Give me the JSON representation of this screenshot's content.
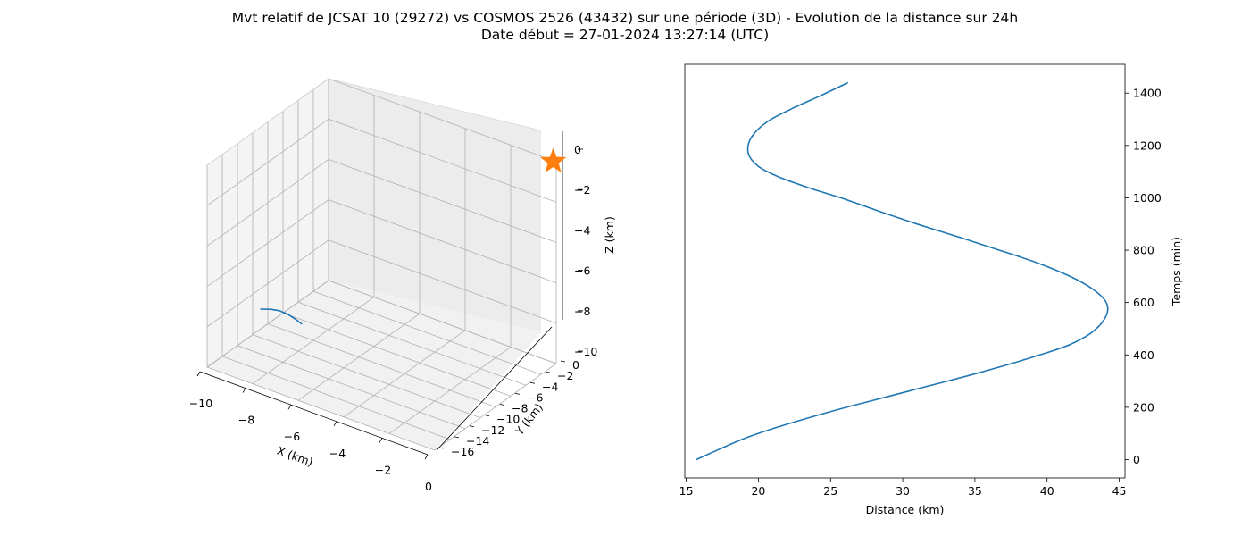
{
  "figure": {
    "title_line1": "Mvt relatif de JCSAT 10 (29272) vs COSMOS 2526 (43432) sur une période (3D) - Evolution de la distance sur 24h",
    "title_line2": "Date début = 27-01-2024 13:27:14 (UTC)"
  },
  "colors": {
    "trajectory": "#1f77b4",
    "star": "#ff7f0e",
    "distance_curve": "#1f77b4",
    "pane_left": "#f4f4f4",
    "pane_right": "#ececec",
    "pane_floor": "#f1f1f1",
    "grid": "#b0b0b0"
  },
  "chart_data": [
    {
      "type": "line",
      "projection": "3d",
      "xlabel": "X (km)",
      "ylabel": "Y (km)",
      "zlabel": "Z (km)",
      "xlim": [
        -10,
        0
      ],
      "ylim": [
        -16,
        0
      ],
      "zlim": [
        -10,
        0
      ],
      "xticks": [
        "−10",
        "−8",
        "−6",
        "−4",
        "−2",
        "0"
      ],
      "yticks": [
        "0",
        "−2",
        "−4",
        "−6",
        "−8",
        "−10",
        "−12",
        "−14",
        "−16"
      ],
      "zticks": [
        "0",
        "−2",
        "−4",
        "−6",
        "−8",
        "−10"
      ],
      "series": [
        {
          "marker": "line",
          "x": [
            -10.0,
            -9.6,
            -9.3,
            -9.0,
            -8.7,
            -8.5
          ],
          "y": [
            -9.0,
            -8.8,
            -8.6,
            -8.4,
            -8.2,
            -8.0
          ],
          "z": [
            -9.0,
            -8.9,
            -8.9,
            -9.0,
            -9.2,
            -9.4
          ]
        },
        {
          "marker": "star",
          "x": [
            -0.1
          ],
          "y": [
            -0.1
          ],
          "z": [
            -0.0
          ]
        }
      ]
    },
    {
      "type": "line",
      "xlabel": "Distance (km)",
      "ylabel": "Temps (min)",
      "xlim": [
        14.9,
        45.4
      ],
      "ylim": [
        -70,
        1510
      ],
      "xticks": [
        "15",
        "20",
        "25",
        "30",
        "35",
        "40",
        "45"
      ],
      "yticks": [
        "0",
        "200",
        "400",
        "600",
        "800",
        "1000",
        "1200",
        "1400"
      ],
      "yaxis_position": "right",
      "series": [
        {
          "x": [
            15.7,
            17.3,
            19.0,
            21.1,
            23.5,
            26.1,
            28.9,
            31.7,
            34.5,
            37.1,
            39.5,
            41.6,
            43.2,
            44.1,
            44.1,
            43.2,
            41.6,
            39.4,
            36.7,
            33.9,
            31.0,
            28.3,
            25.7,
            23.4,
            21.4,
            20.0,
            19.3,
            19.5,
            20.6,
            22.3,
            24.3,
            26.2
          ],
          "y": [
            0,
            40,
            80,
            120,
            160,
            200,
            240,
            280,
            320,
            360,
            400,
            440,
            490,
            550,
            600,
            650,
            700,
            750,
            800,
            850,
            900,
            950,
            1000,
            1040,
            1080,
            1120,
            1170,
            1230,
            1290,
            1340,
            1390,
            1440
          ]
        }
      ]
    }
  ]
}
